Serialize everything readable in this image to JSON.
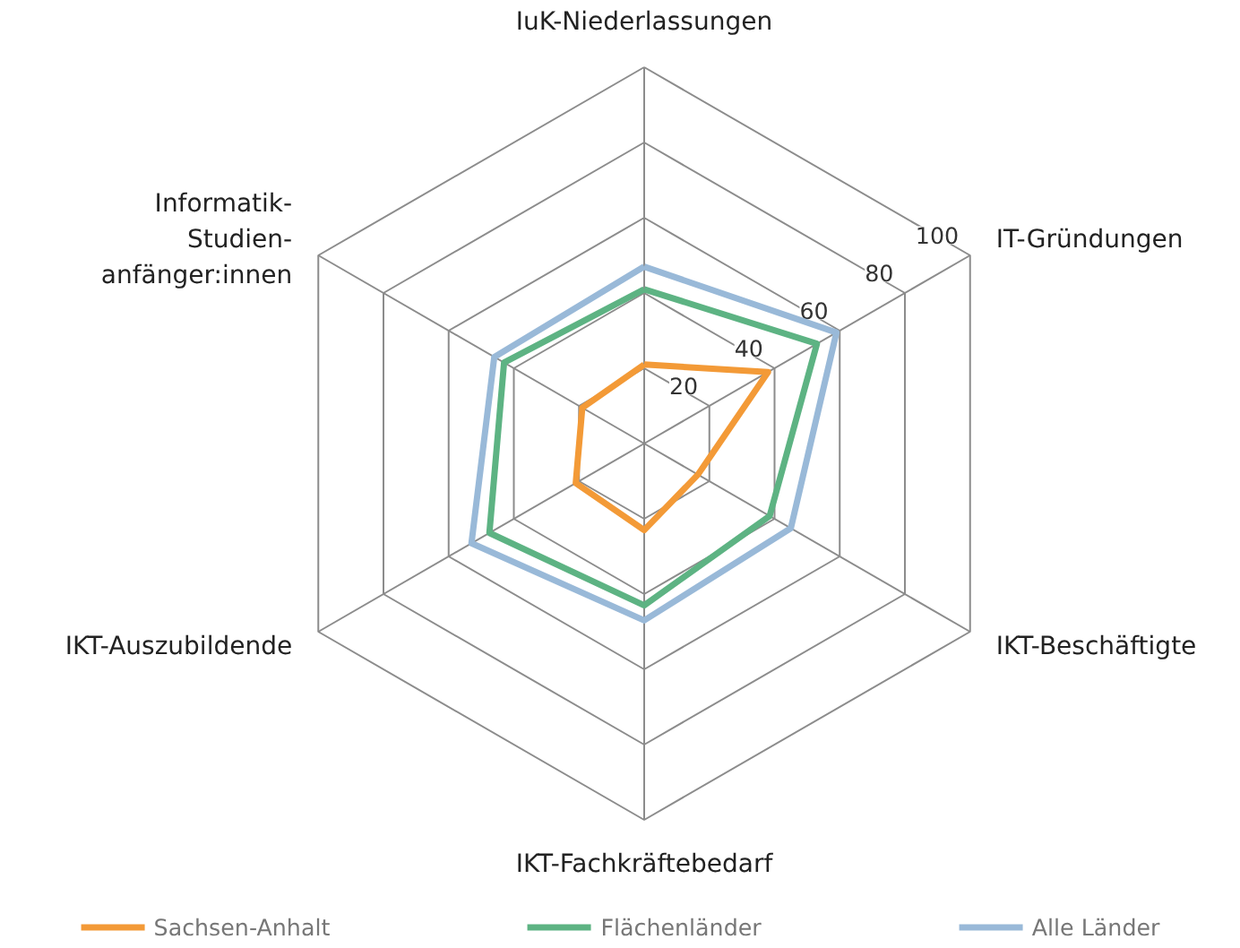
{
  "chart_data": {
    "type": "radar",
    "categories": [
      "IuK-Niederlassungen",
      "IT-Gründungen",
      "IKT-Beschäftigte",
      "IKT-Fachkräftebedarf",
      "IKT-Auszubildende",
      "Informatik-Studien-anfänger:innen"
    ],
    "ylim": [
      0,
      100
    ],
    "yticks": [
      20,
      40,
      60,
      80,
      100
    ],
    "grid": true,
    "legend": "bottom",
    "marker": "none",
    "line_style": "solid",
    "series": [
      {
        "name": "Sachsen-Anhalt",
        "color": "#f39a37",
        "values": [
          21,
          38,
          16.5,
          23,
          21,
          19
        ]
      },
      {
        "name": "Flächenländer",
        "color": "#5db383",
        "values": [
          41,
          53,
          38.5,
          43,
          47.5,
          43
        ]
      },
      {
        "name": "Alle Länder",
        "color": "#99b9d8",
        "values": [
          47,
          59,
          45,
          47,
          53,
          46
        ]
      }
    ]
  }
}
